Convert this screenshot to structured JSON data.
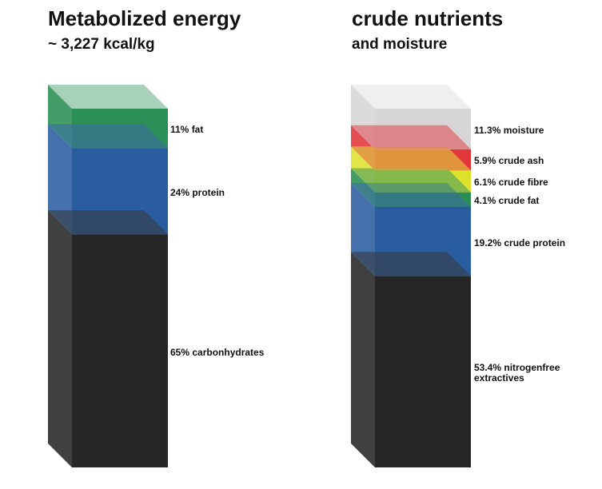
{
  "chart_data": [
    {
      "type": "stacked-bar",
      "title": "Metabolized energy",
      "subtitle": "~ 3,227 kcal/kg",
      "segments": [
        {
          "label": "65% carbonhydrates",
          "value": 65,
          "color": "#262626"
        },
        {
          "label": "24% protein",
          "value": 24,
          "color": "#2a5da0"
        },
        {
          "label": "11% fat",
          "value": 11,
          "color": "#2a8e55"
        }
      ]
    },
    {
      "type": "stacked-bar",
      "title": "crude nutrients",
      "subtitle": "and moisture",
      "segments": [
        {
          "label": "53.4% nitrogenfree extractives",
          "label_lines": [
            "53.4% nitrogenfree",
            "extractives"
          ],
          "value": 53.4,
          "color": "#262626"
        },
        {
          "label": "19.2% crude protein",
          "value": 19.2,
          "color": "#2a5da0"
        },
        {
          "label": "4.1% crude fat",
          "value": 4.1,
          "color": "#2a8e55"
        },
        {
          "label": "6.1% crude fibre",
          "value": 6.1,
          "color": "#dde12c"
        },
        {
          "label": "5.9% crude ash",
          "value": 5.9,
          "color": "#e0363c"
        },
        {
          "label": "11.3% moisture",
          "value": 11.3,
          "color": "#d6d6d6"
        }
      ]
    }
  ]
}
